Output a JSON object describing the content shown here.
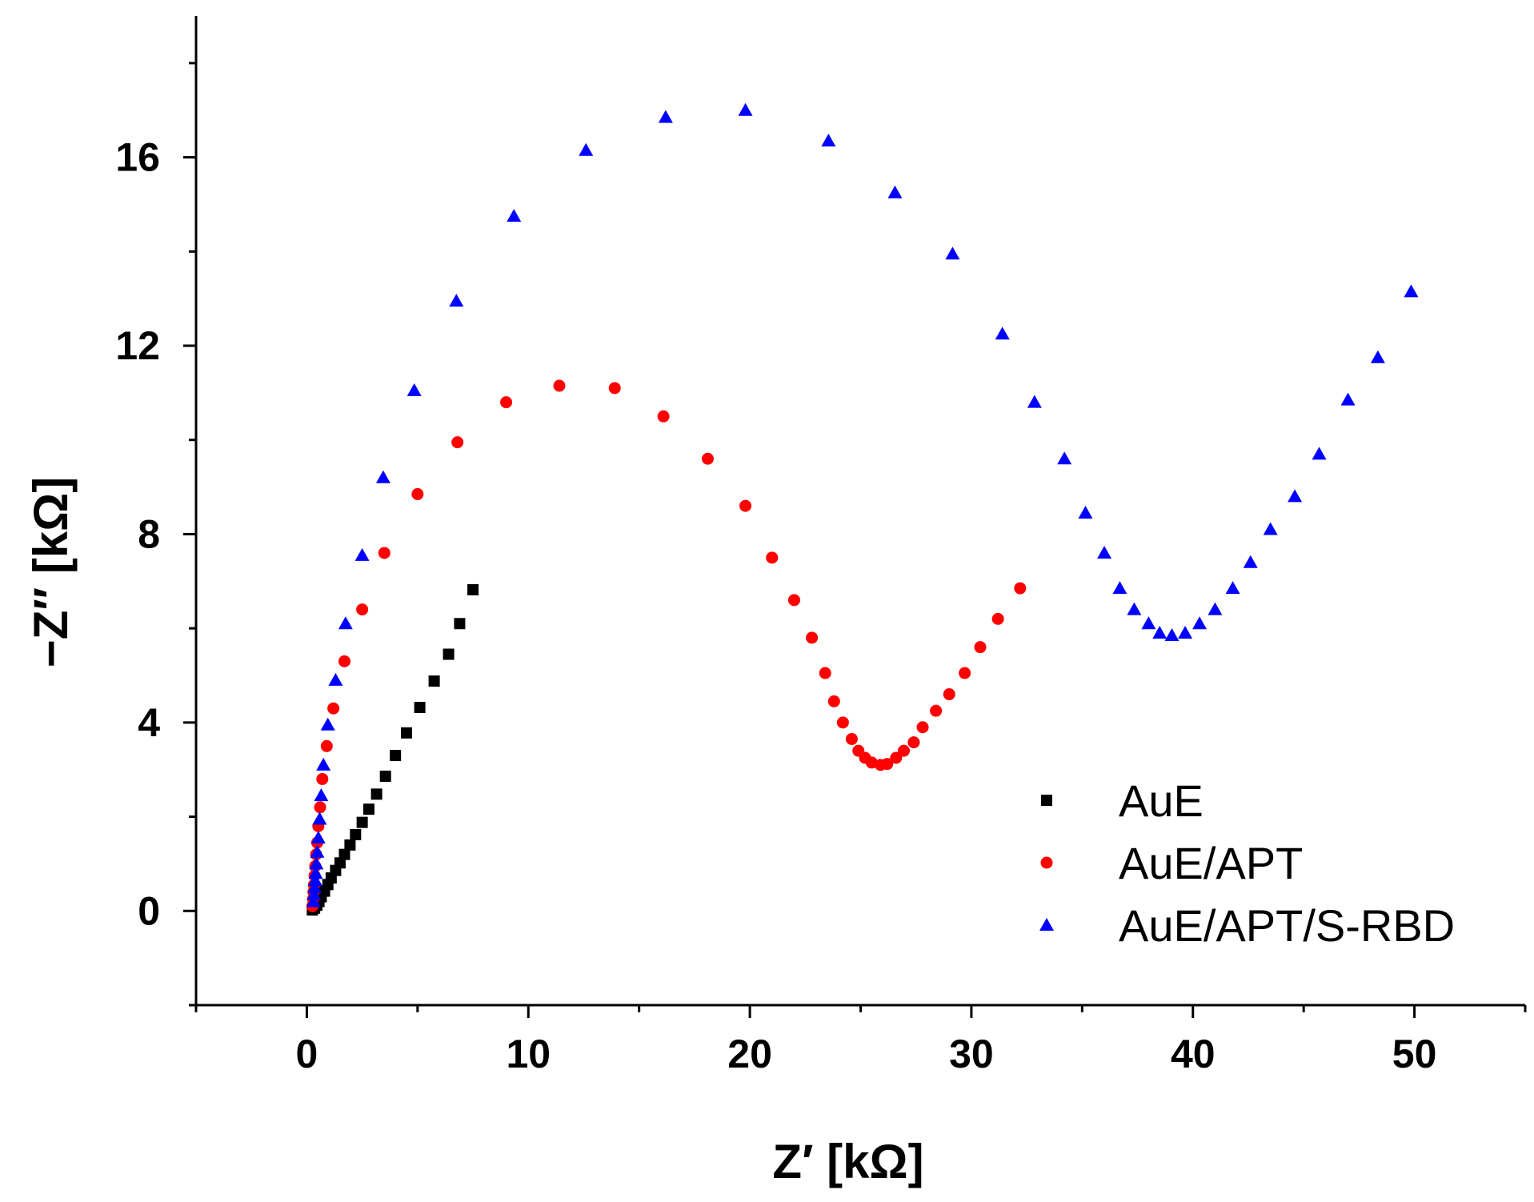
{
  "chart_data": {
    "type": "scatter",
    "title": "",
    "xlabel": "Z′ [kΩ]",
    "ylabel": "−Z″ [kΩ]",
    "xlim": [
      -5,
      55
    ],
    "ylim": [
      -2,
      19
    ],
    "x_ticks": [
      0,
      10,
      20,
      30,
      40,
      50
    ],
    "x_tick_labels": [
      "0",
      "10",
      "20",
      "30",
      "40",
      "50"
    ],
    "y_ticks": [
      0,
      4,
      8,
      12,
      16
    ],
    "y_tick_labels": [
      "0",
      "4",
      "8",
      "12",
      "16"
    ],
    "legend_position": "bottom-right",
    "series": [
      {
        "name": "AuE",
        "marker": "square",
        "color": "#000000",
        "points": [
          [
            0.25,
            0.02
          ],
          [
            0.35,
            0.06
          ],
          [
            0.45,
            0.12
          ],
          [
            0.55,
            0.2
          ],
          [
            0.65,
            0.3
          ],
          [
            0.8,
            0.42
          ],
          [
            0.95,
            0.56
          ],
          [
            1.1,
            0.7
          ],
          [
            1.3,
            0.86
          ],
          [
            1.5,
            1.02
          ],
          [
            1.7,
            1.2
          ],
          [
            1.95,
            1.4
          ],
          [
            2.2,
            1.62
          ],
          [
            2.5,
            1.88
          ],
          [
            2.8,
            2.16
          ],
          [
            3.15,
            2.48
          ],
          [
            3.55,
            2.86
          ],
          [
            4.0,
            3.3
          ],
          [
            4.5,
            3.78
          ],
          [
            5.1,
            4.32
          ],
          [
            5.75,
            4.88
          ],
          [
            6.4,
            5.45
          ],
          [
            6.9,
            6.1
          ],
          [
            7.5,
            6.82
          ]
        ]
      },
      {
        "name": "AuE/APT",
        "marker": "circle",
        "color": "#ff0000",
        "points": [
          [
            0.25,
            0.1
          ],
          [
            0.28,
            0.25
          ],
          [
            0.3,
            0.4
          ],
          [
            0.32,
            0.55
          ],
          [
            0.35,
            0.75
          ],
          [
            0.38,
            0.95
          ],
          [
            0.42,
            1.2
          ],
          [
            0.47,
            1.45
          ],
          [
            0.52,
            1.8
          ],
          [
            0.6,
            2.2
          ],
          [
            0.7,
            2.8
          ],
          [
            0.9,
            3.5
          ],
          [
            1.2,
            4.3
          ],
          [
            1.7,
            5.3
          ],
          [
            2.5,
            6.4
          ],
          [
            3.5,
            7.6
          ],
          [
            5.0,
            8.85
          ],
          [
            6.8,
            9.95
          ],
          [
            9.0,
            10.8
          ],
          [
            11.4,
            11.15
          ],
          [
            13.9,
            11.1
          ],
          [
            16.1,
            10.5
          ],
          [
            18.1,
            9.6
          ],
          [
            19.8,
            8.6
          ],
          [
            21.0,
            7.5
          ],
          [
            22.0,
            6.6
          ],
          [
            22.8,
            5.8
          ],
          [
            23.4,
            5.05
          ],
          [
            23.8,
            4.45
          ],
          [
            24.2,
            4.0
          ],
          [
            24.6,
            3.65
          ],
          [
            24.9,
            3.4
          ],
          [
            25.2,
            3.25
          ],
          [
            25.5,
            3.15
          ],
          [
            25.9,
            3.1
          ],
          [
            26.2,
            3.12
          ],
          [
            26.6,
            3.25
          ],
          [
            26.95,
            3.4
          ],
          [
            27.4,
            3.58
          ],
          [
            27.8,
            3.9
          ],
          [
            28.4,
            4.25
          ],
          [
            29.0,
            4.6
          ],
          [
            29.7,
            5.05
          ],
          [
            30.4,
            5.6
          ],
          [
            31.2,
            6.2
          ],
          [
            32.2,
            6.85
          ]
        ]
      },
      {
        "name": "AuE/APT/S-RBD",
        "marker": "triangle",
        "color": "#0000ff",
        "points": [
          [
            0.3,
            0.2
          ],
          [
            0.32,
            0.35
          ],
          [
            0.35,
            0.5
          ],
          [
            0.38,
            0.65
          ],
          [
            0.4,
            0.8
          ],
          [
            0.43,
            1.0
          ],
          [
            0.47,
            1.25
          ],
          [
            0.52,
            1.55
          ],
          [
            0.58,
            1.95
          ],
          [
            0.65,
            2.45
          ],
          [
            0.75,
            3.1
          ],
          [
            0.95,
            3.95
          ],
          [
            1.3,
            4.9
          ],
          [
            1.75,
            6.1
          ],
          [
            2.5,
            7.55
          ],
          [
            3.45,
            9.2
          ],
          [
            4.85,
            11.05
          ],
          [
            6.75,
            12.95
          ],
          [
            9.35,
            14.75
          ],
          [
            12.6,
            16.15
          ],
          [
            16.2,
            16.85
          ],
          [
            19.8,
            17.0
          ],
          [
            23.55,
            16.35
          ],
          [
            26.55,
            15.25
          ],
          [
            29.15,
            13.95
          ],
          [
            31.4,
            12.25
          ],
          [
            32.85,
            10.8
          ],
          [
            34.2,
            9.6
          ],
          [
            35.15,
            8.45
          ],
          [
            36.0,
            7.6
          ],
          [
            36.7,
            6.85
          ],
          [
            37.35,
            6.4
          ],
          [
            38.0,
            6.1
          ],
          [
            38.5,
            5.9
          ],
          [
            39.05,
            5.85
          ],
          [
            39.65,
            5.9
          ],
          [
            40.3,
            6.1
          ],
          [
            41.0,
            6.4
          ],
          [
            41.8,
            6.85
          ],
          [
            42.6,
            7.4
          ],
          [
            43.5,
            8.1
          ],
          [
            44.6,
            8.8
          ],
          [
            45.7,
            9.7
          ],
          [
            47.0,
            10.85
          ],
          [
            48.35,
            11.75
          ],
          [
            49.85,
            13.15
          ]
        ]
      }
    ]
  }
}
